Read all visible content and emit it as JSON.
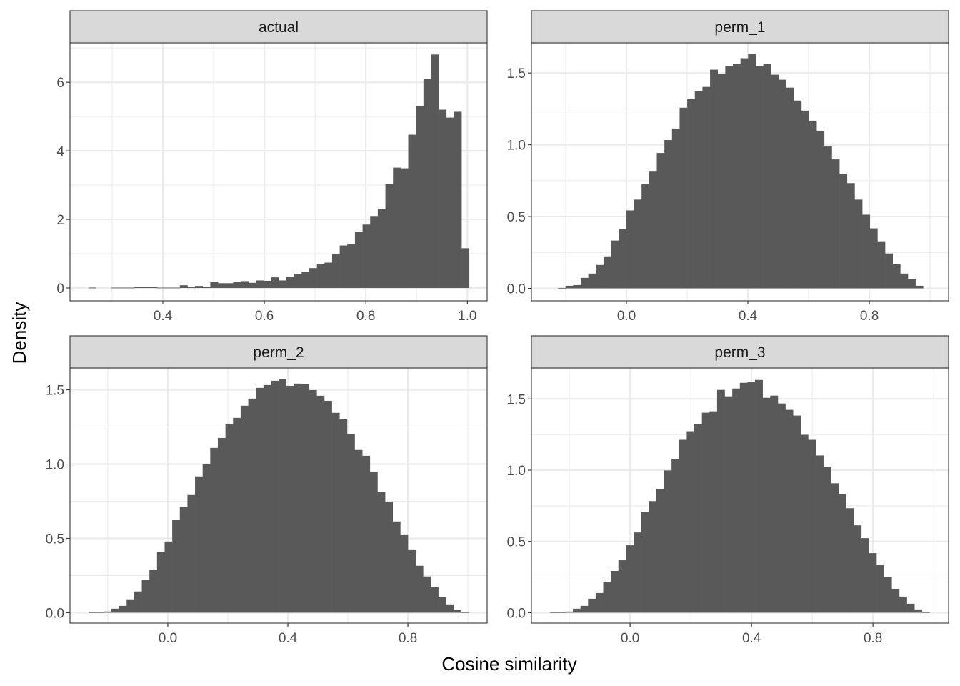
{
  "chart_data": [
    {
      "type": "bar",
      "title": "actual",
      "bin_start": 0.2535,
      "bin_width": 0.015,
      "densities": [
        0.01,
        0,
        0,
        0.01,
        0.01,
        0.01,
        0.03,
        0.03,
        0.03,
        0.01,
        0.01,
        0.01,
        0.08,
        0.02,
        0.06,
        0.03,
        0.17,
        0.14,
        0.14,
        0.17,
        0.2,
        0.15,
        0.22,
        0.21,
        0.31,
        0.22,
        0.33,
        0.41,
        0.47,
        0.58,
        0.7,
        0.74,
        0.99,
        1.24,
        1.28,
        1.64,
        1.85,
        2.1,
        2.31,
        3.03,
        3.51,
        3.49,
        4.47,
        5.31,
        6.1,
        6.81,
        5.2,
        4.97,
        5.14,
        1.16
      ],
      "xlim": [
        0.217,
        1.039
      ],
      "ylim": [
        -0.375,
        7.15
      ],
      "xticks": [
        {
          "value": 0.4,
          "label": "0.4"
        },
        {
          "value": 0.6,
          "label": "0.6"
        },
        {
          "value": 0.8,
          "label": "0.8"
        },
        {
          "value": 1.0,
          "label": "1.0"
        }
      ],
      "xminor": [
        0.3,
        0.5,
        0.7,
        0.9
      ],
      "yticks": [
        {
          "value": 0,
          "label": "0"
        },
        {
          "value": 2,
          "label": "2"
        },
        {
          "value": 4,
          "label": "4"
        },
        {
          "value": 6,
          "label": "6"
        }
      ],
      "yminor": [
        1,
        3,
        5,
        7
      ]
    },
    {
      "type": "bar",
      "title": "perm_1",
      "bin_start": -0.276,
      "bin_width": 0.02506,
      "densities": [
        0,
        0,
        0.003,
        0.018,
        0.023,
        0.073,
        0.103,
        0.163,
        0.223,
        0.333,
        0.413,
        0.543,
        0.618,
        0.728,
        0.818,
        0.943,
        1.033,
        1.113,
        1.258,
        1.318,
        1.373,
        1.403,
        1.523,
        1.493,
        1.548,
        1.563,
        1.603,
        1.633,
        1.548,
        1.563,
        1.488,
        1.453,
        1.398,
        1.308,
        1.238,
        1.168,
        1.098,
        0.988,
        0.898,
        0.798,
        0.733,
        0.618,
        0.513,
        0.418,
        0.328,
        0.243,
        0.168,
        0.103,
        0.063,
        0.018
      ],
      "xlim": [
        -0.313,
        1.061
      ],
      "ylim": [
        -0.087,
        1.71
      ],
      "xticks": [
        {
          "value": 0.0,
          "label": "0.0"
        },
        {
          "value": 0.4,
          "label": "0.4"
        },
        {
          "value": 0.8,
          "label": "0.8"
        }
      ],
      "xminor": [
        -0.2,
        0.2,
        0.6,
        1.0
      ],
      "yticks": [
        {
          "value": 0.0,
          "label": "0.0"
        },
        {
          "value": 0.5,
          "label": "0.5"
        },
        {
          "value": 1.0,
          "label": "1.0"
        },
        {
          "value": 1.5,
          "label": "1.5"
        }
      ],
      "yminor": [
        0.25,
        0.75,
        1.25
      ]
    },
    {
      "type": "bar",
      "title": "perm_2",
      "bin_start": -0.264,
      "bin_width": 0.02533,
      "densities": [
        0.003,
        0.003,
        0.008,
        0.027,
        0.046,
        0.09,
        0.143,
        0.22,
        0.287,
        0.407,
        0.479,
        0.623,
        0.71,
        0.792,
        0.917,
        0.998,
        1.109,
        1.176,
        1.272,
        1.311,
        1.393,
        1.441,
        1.513,
        1.532,
        1.561,
        1.571,
        1.527,
        1.542,
        1.537,
        1.498,
        1.46,
        1.426,
        1.345,
        1.301,
        1.2,
        1.095,
        1.056,
        0.95,
        0.811,
        0.744,
        0.614,
        0.527,
        0.426,
        0.316,
        0.244,
        0.171,
        0.104,
        0.056,
        0.018,
        0.003
      ],
      "xlim": [
        -0.326,
        1.064
      ],
      "ylim": [
        -0.07,
        1.647
      ],
      "xticks": [
        {
          "value": 0.0,
          "label": "0.0"
        },
        {
          "value": 0.4,
          "label": "0.4"
        },
        {
          "value": 0.8,
          "label": "0.8"
        }
      ],
      "xminor": [
        -0.2,
        0.2,
        0.6,
        1.0
      ],
      "yticks": [
        {
          "value": 0.0,
          "label": "0.0"
        },
        {
          "value": 0.5,
          "label": "0.5"
        },
        {
          "value": 1.0,
          "label": "1.0"
        },
        {
          "value": 1.5,
          "label": "1.5"
        }
      ],
      "yminor": [
        0.25,
        0.75,
        1.25
      ]
    },
    {
      "type": "bar",
      "title": "perm_3",
      "bin_start": -0.2635,
      "bin_width": 0.025,
      "densities": [
        0.003,
        0.003,
        0.008,
        0.028,
        0.048,
        0.098,
        0.138,
        0.218,
        0.293,
        0.368,
        0.473,
        0.563,
        0.708,
        0.783,
        0.868,
        0.998,
        1.078,
        1.213,
        1.273,
        1.323,
        1.403,
        1.413,
        1.563,
        1.518,
        1.573,
        1.613,
        1.618,
        1.633,
        1.508,
        1.523,
        1.468,
        1.423,
        1.383,
        1.248,
        1.213,
        1.103,
        1.023,
        0.908,
        0.833,
        0.733,
        0.613,
        0.523,
        0.418,
        0.333,
        0.248,
        0.168,
        0.113,
        0.063,
        0.023,
        0.003
      ],
      "xlim": [
        -0.325,
        1.049
      ],
      "ylim": [
        -0.073,
        1.717
      ],
      "xticks": [
        {
          "value": 0.0,
          "label": "0.0"
        },
        {
          "value": 0.4,
          "label": "0.4"
        },
        {
          "value": 0.8,
          "label": "0.8"
        }
      ],
      "xminor": [
        -0.2,
        0.2,
        0.6,
        1.0
      ],
      "yticks": [
        {
          "value": 0.0,
          "label": "0.0"
        },
        {
          "value": 0.5,
          "label": "0.5"
        },
        {
          "value": 1.0,
          "label": "1.0"
        },
        {
          "value": 1.5,
          "label": "1.5"
        }
      ],
      "yminor": [
        0.25,
        0.75,
        1.25
      ]
    }
  ],
  "axes": {
    "xlabel": "Cosine similarity",
    "ylabel": "Density"
  },
  "colors": {
    "bar": "#595959",
    "strip": "#d9d9d9",
    "grid": "#ebebeb"
  }
}
